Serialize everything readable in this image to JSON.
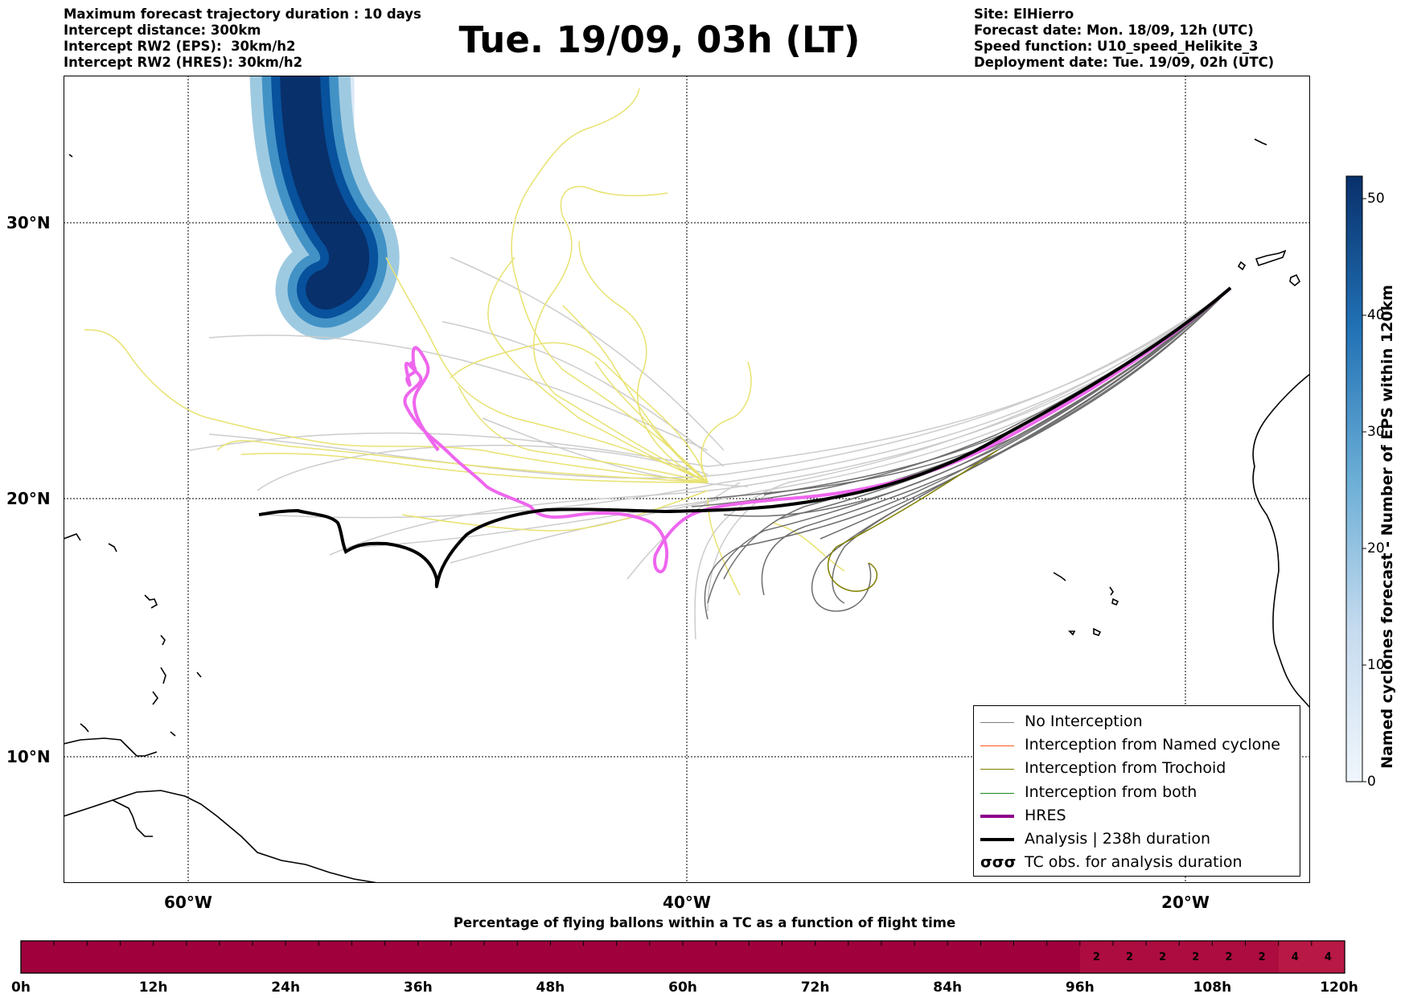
{
  "header_left": [
    "Maximum forecast trajectory duration : 10 days",
    "Intercept distance: 300km",
    "Intercept RW2 (EPS):  30km/h2",
    "Intercept RW2 (HRES): 30km/h2"
  ],
  "title": "Tue. 19/09, 03h (LT)",
  "header_right": [
    "Site: ElHierro",
    "Forecast date: Mon. 18/09, 12h (UTC)",
    "Speed function: U10_speed_Helikite_3",
    "Deployment date: Tue. 19/09, 02h (UTC)"
  ],
  "map": {
    "lat_labels": [
      "30°N",
      "20°N",
      "10°N"
    ],
    "lon_labels": [
      "60°W",
      "40°W",
      "20°W"
    ]
  },
  "legend": [
    {
      "label": "No Interception",
      "color": "#7f7f7f"
    },
    {
      "label": "Interception from Named cyclone",
      "color": "#ff5a1f"
    },
    {
      "label": "Interception from Trochoid",
      "color": "#7f7f00"
    },
    {
      "label": "Interception from both",
      "color": "#1a8a1a"
    },
    {
      "label": "HRES",
      "color": "#8b008b"
    },
    {
      "label": "Analysis | 238h duration",
      "color": "#000000"
    },
    {
      "label": "TC obs. for analysis duration",
      "symbol": "σσσ"
    }
  ],
  "colorbar": {
    "label": "Named cyclones forecast - Number of EPS within 120km",
    "ticks": [
      "0",
      "10",
      "20",
      "30",
      "40",
      "50"
    ],
    "max": 52,
    "colormap": [
      "#f0f6fc",
      "#c6dbef",
      "#6baed6",
      "#2171b5",
      "#08306b"
    ]
  },
  "time_bar": {
    "title": "Percentage of flying ballons within a TC as a function of flight time",
    "ticks": [
      "0h",
      "12h",
      "24h",
      "36h",
      "48h",
      "60h",
      "72h",
      "84h",
      "96h",
      "108h",
      "120h"
    ],
    "base_color": "#a0003c",
    "cells_from_hour": 96,
    "cell_hours": 3,
    "cell_values": [
      "2",
      "2",
      "2",
      "2",
      "2",
      "2",
      "4",
      "4"
    ]
  }
}
